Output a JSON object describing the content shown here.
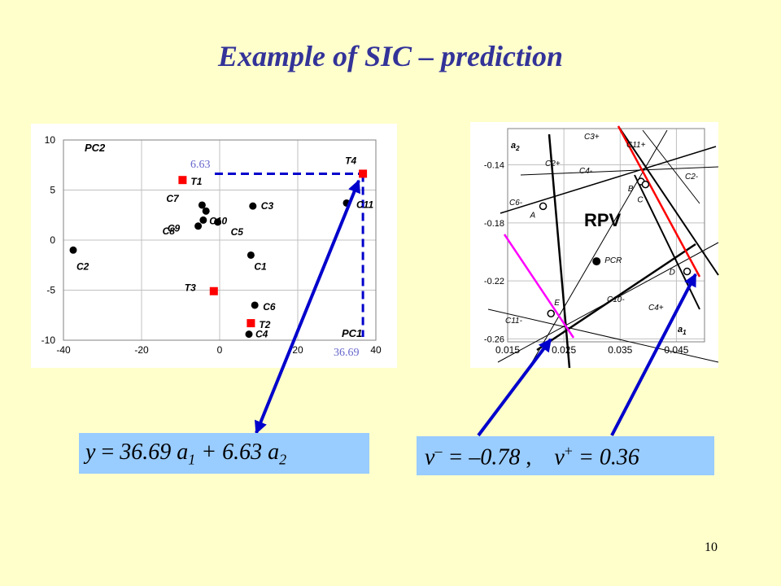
{
  "title": "Example of SIC – prediction",
  "slide_number": "10",
  "chart_data": [
    {
      "type": "scatter",
      "xlabel": "PC1",
      "ylabel": "PC2",
      "xlim": [
        -40,
        40
      ],
      "ylim": [
        -10,
        10
      ],
      "x_ticks": [
        -40,
        -20,
        0,
        20,
        40
      ],
      "y_ticks": [
        10,
        5,
        0,
        -5,
        -10
      ],
      "grid": true,
      "points": [
        {
          "label": "C2",
          "x": -37.5,
          "y": -1.0,
          "kind": "calibration"
        },
        {
          "label": "C7",
          "x": -4.5,
          "y": 3.5,
          "kind": "calibration"
        },
        {
          "label": "C10",
          "x": -3.5,
          "y": 2.9,
          "kind": "calibration"
        },
        {
          "label": "C9",
          "x": -4.2,
          "y": 2.0,
          "kind": "calibration"
        },
        {
          "label": "C8",
          "x": -5.5,
          "y": 1.4,
          "kind": "calibration"
        },
        {
          "label": "C5",
          "x": -0.5,
          "y": 1.8,
          "kind": "calibration"
        },
        {
          "label": "C3",
          "x": 8.5,
          "y": 3.4,
          "kind": "calibration"
        },
        {
          "label": "C11",
          "x": 32.5,
          "y": 3.7,
          "kind": "calibration"
        },
        {
          "label": "C1",
          "x": 8.0,
          "y": -1.5,
          "kind": "calibration"
        },
        {
          "label": "C6",
          "x": 9.0,
          "y": -6.5,
          "kind": "calibration"
        },
        {
          "label": "C4",
          "x": 7.5,
          "y": -9.4,
          "kind": "calibration"
        },
        {
          "label": "T1",
          "x": -9.5,
          "y": 6.0,
          "kind": "test"
        },
        {
          "label": "T4",
          "x": 36.69,
          "y": 6.63,
          "kind": "test"
        },
        {
          "label": "T3",
          "x": -1.5,
          "y": -5.1,
          "kind": "test"
        },
        {
          "label": "T2",
          "x": 8.0,
          "y": -8.3,
          "kind": "test"
        }
      ],
      "annotations": {
        "x_value": "36.69",
        "y_value": "6.63"
      }
    },
    {
      "type": "scatter",
      "xlabel": "a",
      "xlabel_sub": "1",
      "ylabel": "a",
      "ylabel_sub": "2",
      "xlim": [
        0.015,
        0.05
      ],
      "ylim": [
        -0.262,
        -0.115
      ],
      "x_ticks": [
        0.015,
        0.025,
        0.035,
        0.045
      ],
      "y_ticks": [
        -0.14,
        -0.18,
        -0.22,
        -0.26
      ],
      "grid": true,
      "region_label": "RPV",
      "points": [
        {
          "label": "PCR",
          "x": 0.0308,
          "y": -0.2065,
          "kind": "center"
        },
        {
          "label": "A",
          "x": 0.0213,
          "y": -0.1685,
          "kind": "vertex"
        },
        {
          "label": "B",
          "x": 0.0387,
          "y": -0.1515,
          "kind": "vertex"
        },
        {
          "label": "C",
          "x": 0.0395,
          "y": -0.1535,
          "kind": "vertex"
        },
        {
          "label": "D",
          "x": 0.0469,
          "y": -0.2135,
          "kind": "vertex"
        },
        {
          "label": "E",
          "x": 0.0227,
          "y": -0.2425,
          "kind": "vertex"
        }
      ],
      "line_labels": [
        "C3+",
        "C11+",
        "C2+",
        "C4-",
        "C2-",
        "C6-",
        "C10-",
        "C4+",
        "C11-"
      ]
    }
  ],
  "formulas": {
    "y_eq": {
      "y": "y",
      "eq": " = ",
      "a1_coef": "36.69 ",
      "a1": "a",
      "a1_sub": "1",
      "plus": " + ",
      "a2_coef": "6.63 ",
      "a2": "a",
      "a2_sub": "2"
    },
    "v_eq": {
      "v1": "v",
      "v1_sup": "–",
      "eq1": " = –0.78",
      "sep": " ,    ",
      "v2": "v",
      "v2_sup": "+",
      "eq2": " = 0.36"
    }
  },
  "colors": {
    "background": "#ffffcc",
    "title": "#333399",
    "arrow": "#0000cc",
    "dashed": "#0000cc",
    "test_marker": "#ff0000",
    "red_line": "#ff0000",
    "magenta_line": "#ff00ff",
    "formula_box": "#99ccff",
    "annotation_text": "#6666cc"
  }
}
